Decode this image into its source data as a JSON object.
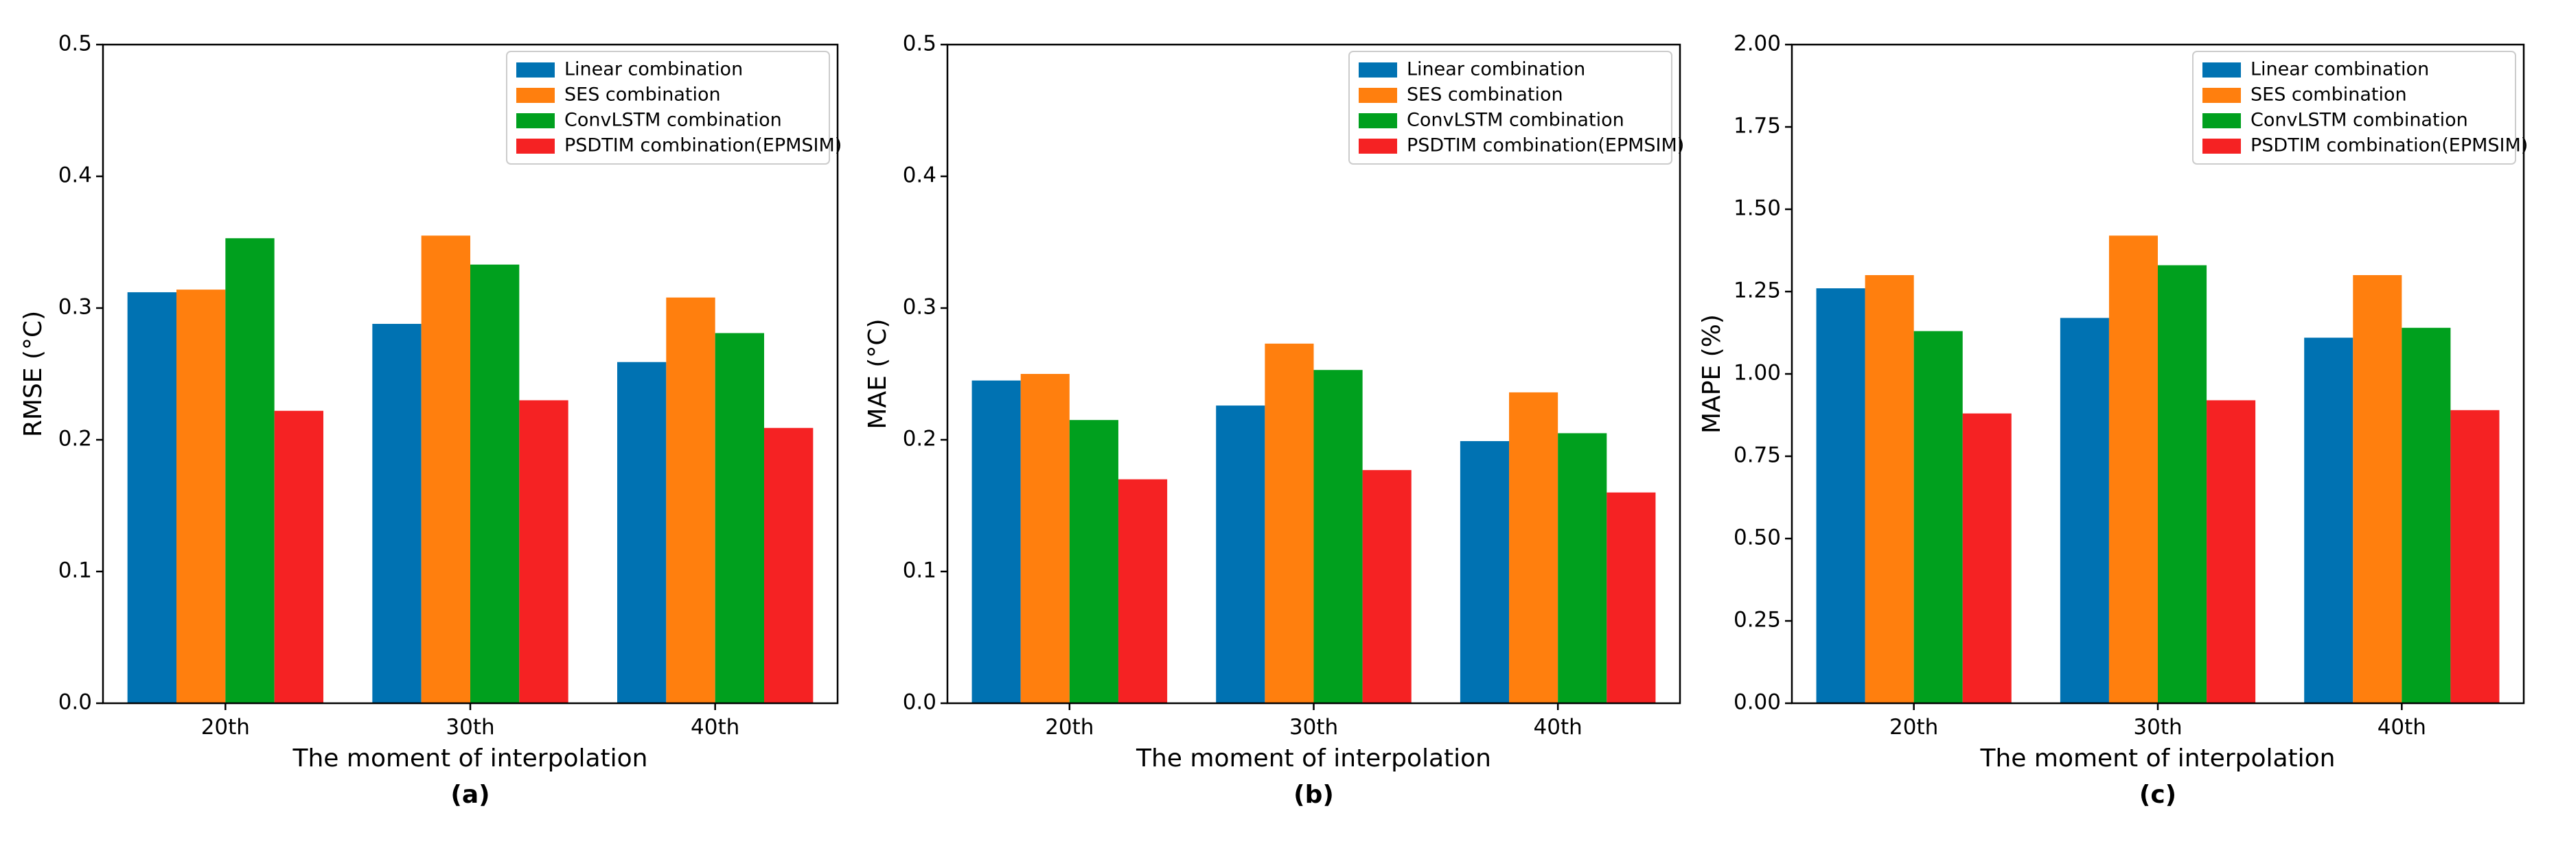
{
  "colors": {
    "linear": "#0072B2",
    "ses": "#FF7F0E",
    "convlstm": "#00A01E",
    "psdtim": "#F52223"
  },
  "chart_data": [
    {
      "type": "bar",
      "panel_label": "(a)",
      "xlabel": "The moment of interpolation",
      "ylabel": "RMSE (°C)",
      "categories": [
        "20th",
        "30th",
        "40th"
      ],
      "ylim": [
        0,
        0.5
      ],
      "yticks": [
        "0.0",
        "0.1",
        "0.2",
        "0.3",
        "0.4",
        "0.5"
      ],
      "legend_position": "top-right",
      "series": [
        {
          "name": "Linear combination",
          "values": [
            0.312,
            0.288,
            0.259
          ]
        },
        {
          "name": "SES combination",
          "values": [
            0.314,
            0.355,
            0.308
          ]
        },
        {
          "name": "ConvLSTM combination",
          "values": [
            0.353,
            0.333,
            0.281
          ]
        },
        {
          "name": "PSDTIM combination(EPMSIM)",
          "values": [
            0.222,
            0.23,
            0.209
          ]
        }
      ]
    },
    {
      "type": "bar",
      "panel_label": "(b)",
      "xlabel": "The moment of interpolation",
      "ylabel": "MAE (°C)",
      "categories": [
        "20th",
        "30th",
        "40th"
      ],
      "ylim": [
        0,
        0.5
      ],
      "yticks": [
        "0.0",
        "0.1",
        "0.2",
        "0.3",
        "0.4",
        "0.5"
      ],
      "legend_position": "top-right",
      "series": [
        {
          "name": "Linear combination",
          "values": [
            0.245,
            0.226,
            0.199
          ]
        },
        {
          "name": "SES combination",
          "values": [
            0.25,
            0.273,
            0.236
          ]
        },
        {
          "name": "ConvLSTM combination",
          "values": [
            0.215,
            0.253,
            0.205
          ]
        },
        {
          "name": "PSDTIM combination(EPMSIM)",
          "values": [
            0.17,
            0.177,
            0.16
          ]
        }
      ]
    },
    {
      "type": "bar",
      "panel_label": "(c)",
      "xlabel": "The moment of interpolation",
      "ylabel": "MAPE (%)",
      "categories": [
        "20th",
        "30th",
        "40th"
      ],
      "ylim": [
        0,
        2.0
      ],
      "yticks": [
        "0.00",
        "0.25",
        "0.50",
        "0.75",
        "1.00",
        "1.25",
        "1.50",
        "1.75",
        "2.00"
      ],
      "legend_position": "top-right",
      "series": [
        {
          "name": "Linear combination",
          "values": [
            1.26,
            1.17,
            1.11
          ]
        },
        {
          "name": "SES combination",
          "values": [
            1.3,
            1.42,
            1.3
          ]
        },
        {
          "name": "ConvLSTM combination",
          "values": [
            1.13,
            1.33,
            1.14
          ]
        },
        {
          "name": "PSDTIM combination(EPMSIM)",
          "values": [
            0.88,
            0.92,
            0.89
          ]
        }
      ]
    }
  ]
}
